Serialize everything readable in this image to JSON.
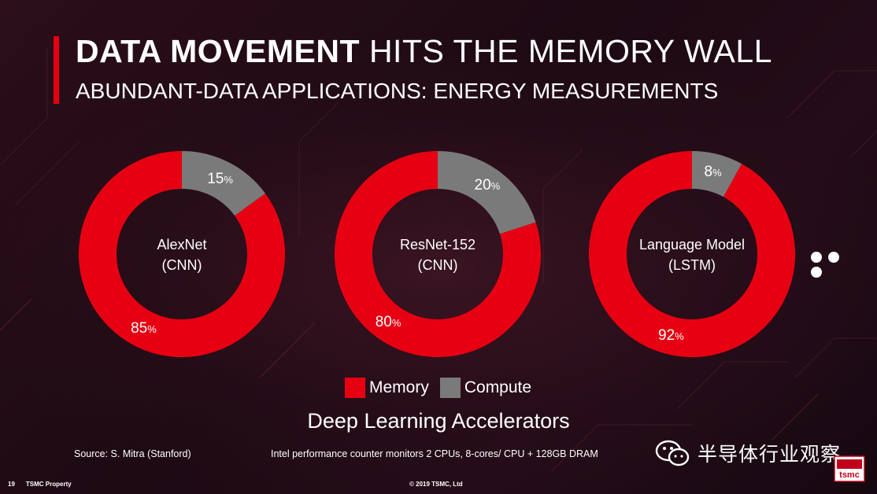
{
  "header": {
    "title_bold": "DATA MOVEMENT",
    "title_rest": "HITS THE MEMORY WALL",
    "subtitle": "ABUNDANT-DATA APPLICATIONS: ENERGY MEASUREMENTS"
  },
  "colors": {
    "memory": "#e60012",
    "compute": "#7a7a7a",
    "accent": "#e60012"
  },
  "chart_data": [
    {
      "type": "pie",
      "name_line1": "AlexNet",
      "name_line2": "(CNN)",
      "slices": [
        {
          "label": "Memory",
          "value": 85
        },
        {
          "label": "Compute",
          "value": 15
        }
      ],
      "memory_label": "85",
      "compute_label": "15"
    },
    {
      "type": "pie",
      "name_line1": "ResNet-152",
      "name_line2": "(CNN)",
      "slices": [
        {
          "label": "Memory",
          "value": 80
        },
        {
          "label": "Compute",
          "value": 20
        }
      ],
      "memory_label": "80",
      "compute_label": "20"
    },
    {
      "type": "pie",
      "name_line1": "Language Model",
      "name_line2": "(LSTM)",
      "slices": [
        {
          "label": "Memory",
          "value": 92
        },
        {
          "label": "Compute",
          "value": 8
        }
      ],
      "memory_label": "92",
      "compute_label": "8"
    }
  ],
  "pct_sign": "%",
  "legend": {
    "memory": "Memory",
    "compute": "Compute"
  },
  "caption": "Deep Learning Accelerators",
  "source": "Source: S. Mitra (Stanford)",
  "note": "Intel performance counter monitors 2 CPUs, 8-cores/ CPU + 128GB DRAM",
  "footer": {
    "page": "19",
    "property": "TSMC Property",
    "copyright": "© 2019 TSMC, Ltd"
  },
  "watermark": "半导体行业观察",
  "logo_text": "tsmc"
}
